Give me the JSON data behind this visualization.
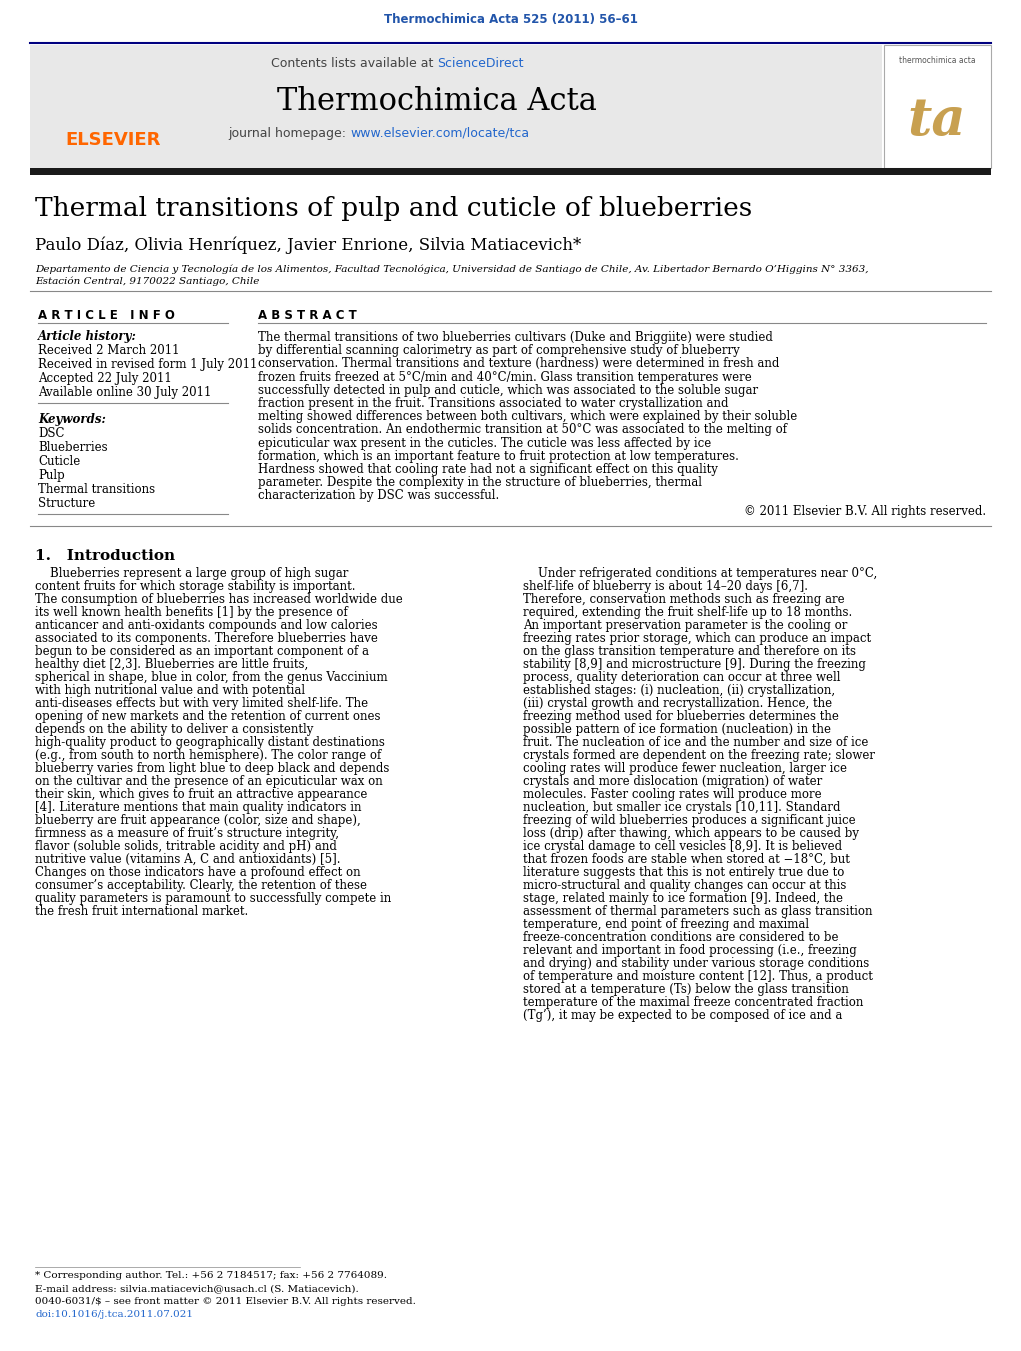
{
  "journal_ref": "Thermochimica Acta 525 (2011) 56–61",
  "journal_ref_color": "#2255aa",
  "header_bg_color": "#e8e8e8",
  "journal_name": "Thermochimica Acta",
  "journal_homepage_text": "journal homepage: ",
  "journal_homepage_url": "www.elsevier.com/locate/tca",
  "contents_text": "Contents lists available at ",
  "sciencedirect_text": "ScienceDirect",
  "link_color": "#2266cc",
  "paper_title": "Thermal transitions of pulp and cuticle of blueberries",
  "authors": "Paulo Díaz, Olivia Henríquez, Javier Enrione, Silvia Matiacevich*",
  "affiliation_line1": "Departamento de Ciencia y Tecnología de los Alimentos, Facultad Tecnológica, Universidad de Santiago de Chile, Av. Libertador Bernardo O’Higgins N° 3363,",
  "affiliation_line2": "Estación Central, 9170022 Santiago, Chile",
  "article_info_title": "A R T I C L E   I N F O",
  "abstract_title": "A B S T R A C T",
  "article_history_label": "Article history:",
  "article_history": [
    "Received 2 March 2011",
    "Received in revised form 1 July 2011",
    "Accepted 22 July 2011",
    "Available online 30 July 2011"
  ],
  "keywords_label": "Keywords:",
  "keywords": [
    "DSC",
    "Blueberries",
    "Cuticle",
    "Pulp",
    "Thermal transitions",
    "Structure"
  ],
  "abstract_text": "The thermal transitions of two blueberries cultivars (Duke and Briggiite) were studied by differential scanning calorimetry as part of comprehensive study of blueberry conservation. Thermal transitions and texture (hardness) were determined in fresh and frozen fruits freezed at 5°C/min and 40°C/min. Glass transition temperatures were successfully detected in pulp and cuticle, which was associated to the soluble sugar fraction present in the fruit. Transitions associated to water crystallization and melting showed differences between both cultivars, which were explained by their soluble solids concentration. An endothermic transition at 50°C was associated to the melting of epicuticular wax present in the cuticles. The cuticle was less affected by ice formation, which is an important feature to fruit protection at low temperatures. Hardness showed that cooling rate had not a significant effect on this quality parameter. Despite the complexity in the structure of blueberries, thermal characterization by DSC was successful.",
  "copyright_text": "© 2011 Elsevier B.V. All rights reserved.",
  "intro_heading": "1.   Introduction",
  "intro_col1": "Blueberries represent a large group of high sugar content fruits for which storage stability is important. The consumption of blueberries has increased worldwide due its well known health benefits [1] by the presence of anticancer and anti-oxidants compounds and low calories associated to its components. Therefore blueberries have begun to be considered as an important component of a healthy diet [2,3]. Blueberries are little fruits, spherical in shape, blue in color, from the genus Vaccinium with high nutritional value and with potential anti-diseases effects but with very limited shelf-life. The opening of new markets and the retention of current ones depends on the ability to deliver a consistently high-quality product to geographically distant destinations (e.g., from south to north hemisphere). The color range of blueberry varies from light blue to deep black and depends on the cultivar and the presence of an epicuticular wax on their skin, which gives to fruit an attractive appearance [4]. Literature mentions that main quality indicators in blueberry are fruit appearance (color, size and shape), firmness as a measure of fruit’s structure integrity, flavor (soluble solids, tritrable acidity and pH) and nutritive value (vitamins A, C and antioxidants) [5]. Changes on those indicators have a profound effect on consumer’s acceptability. Clearly, the retention of these quality parameters is paramount to successfully compete in the fresh fruit international market.",
  "intro_col2": "Under refrigerated conditions at temperatures near 0°C, shelf-life of blueberry is about 14–20 days [6,7]. Therefore, conservation methods such as freezing are required, extending the fruit shelf-life up to 18 months. An important preservation parameter is the cooling or freezing rates prior storage, which can produce an impact on the glass transition temperature and therefore on its stability [8,9] and microstructure [9]. During the freezing process, quality deterioration can occur at three well established stages: (i) nucleation, (ii) crystallization, (iii) crystal growth and recrystallization. Hence, the freezing method used for blueberries determines the possible pattern of ice formation (nucleation) in the fruit. The nucleation of ice and the number and size of ice crystals formed are dependent on the freezing rate; slower cooling rates will produce fewer nucleation, larger ice crystals and more dislocation (migration) of water molecules. Faster cooling rates will produce more nucleation, but smaller ice crystals [10,11]. Standard freezing of wild blueberries produces a significant juice loss (drip) after thawing, which appears to be caused by ice crystal damage to cell vesicles [8,9]. It is believed that frozen foods are stable when stored at −18°C, but literature suggests that this is not entirely true due to micro-structural and quality changes can occur at this stage, related mainly to ice formation [9]. Indeed, the assessment of thermal parameters such as glass transition temperature, end point of freezing and maximal freeze-concentration conditions are considered to be relevant and important in food processing (i.e., freezing and drying) and stability under various storage conditions of temperature and moisture content [12]. Thus, a product stored at a temperature (Ts) below the glass transition temperature of the maximal freeze concentrated fraction (Tg’), it may be expected to be composed of ice and a",
  "footnote1": "* Corresponding author. Tel.: +56 2 7184517; fax: +56 2 7764089.",
  "footnote2": "E-mail address: silvia.matiacevich@usach.cl (S. Matiacevich).",
  "footnote3": "0040-6031/$ – see front matter © 2011 Elsevier B.V. All rights reserved.",
  "footnote4": "doi:10.1016/j.tca.2011.07.021",
  "bg_color": "#ffffff",
  "text_color": "#000000"
}
